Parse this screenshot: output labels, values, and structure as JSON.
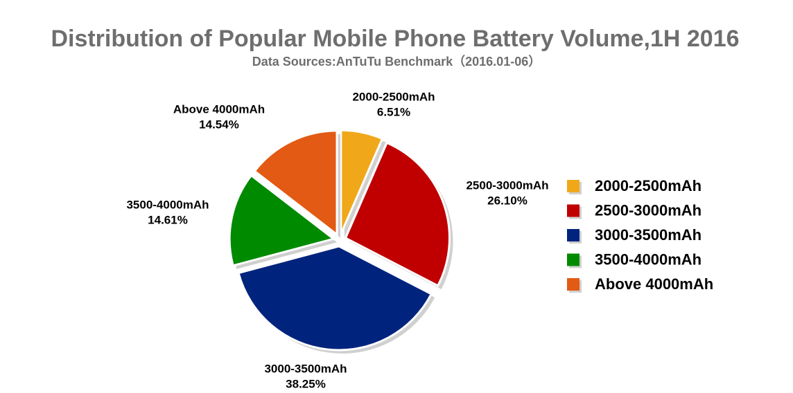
{
  "chart_data": {
    "type": "pie",
    "title": "Distribution of Popular Mobile Phone Battery Volume,1H 2016",
    "subtitle": "Data Sources:AnTuTu Benchmark（2016.01-06）",
    "categories": [
      "2000-2500mAh",
      "2500-3000mAh",
      "3000-3500mAh",
      "3500-4000mAh",
      "Above 4000mAh"
    ],
    "values": [
      6.51,
      26.1,
      38.25,
      14.61,
      14.54
    ],
    "value_labels": [
      "6.51%",
      "26.10%",
      "38.25%",
      "14.61%",
      "14.54%"
    ],
    "colors": [
      "#f0a81a",
      "#c00000",
      "#00247d",
      "#008a00",
      "#e35a14"
    ],
    "legend": "right"
  }
}
